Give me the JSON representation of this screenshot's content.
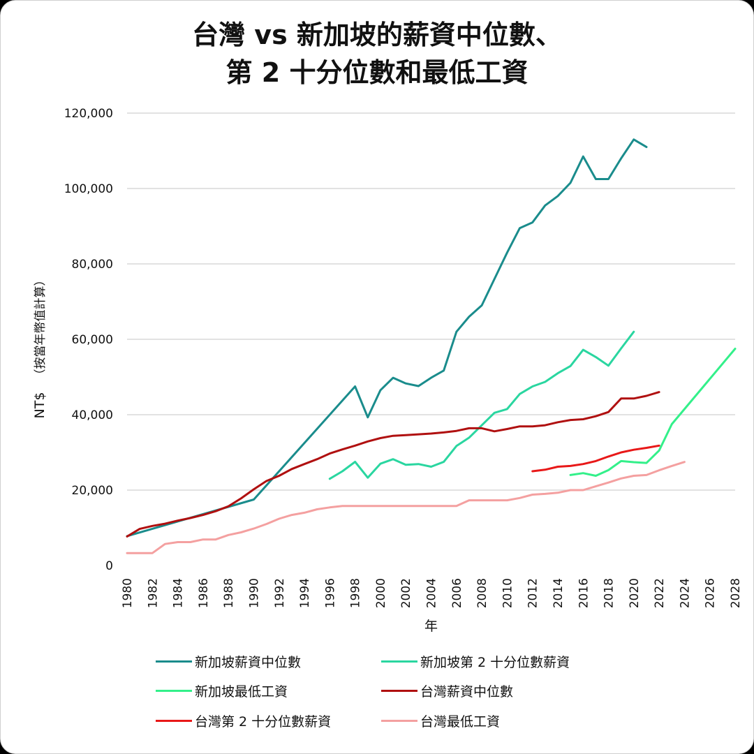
{
  "title_line1": "台灣 vs 新加坡的薪資中位數、",
  "title_line2": "第 2 十分位數和最低工資",
  "chart_data": {
    "type": "line",
    "title": "台灣 vs 新加坡的薪資中位數、第 2 十分位數和最低工資",
    "xlabel": "年",
    "ylabel": "NT$ （按當年幣值計算）",
    "ylabel_unit": "NT$",
    "ylabel_note": "（按當年幣值計算）",
    "ylim": [
      0,
      120000
    ],
    "xlim": [
      1980,
      2028
    ],
    "yticks": [
      0,
      20000,
      40000,
      60000,
      80000,
      100000,
      120000
    ],
    "ytick_labels": [
      "0",
      "20,000",
      "40,000",
      "60,000",
      "80,000",
      "100,000",
      "120,000"
    ],
    "xticks": [
      "1980",
      "1982",
      "1984",
      "1986",
      "1988",
      "1990",
      "1992",
      "1994",
      "1996",
      "1998",
      "2000",
      "2002",
      "2004",
      "2006",
      "2008",
      "2010",
      "2012",
      "2014",
      "2016",
      "2018",
      "2020",
      "2022",
      "2024",
      "2026",
      "2028"
    ],
    "grid": "horizontal",
    "legend_position": "bottom",
    "series": [
      {
        "name": "新加坡薪資中位數",
        "color": "#1a8c8c",
        "x": [
          1980,
          1990,
          1998,
          1999,
          2000,
          2001,
          2002,
          2003,
          2004,
          2005,
          2006,
          2007,
          2008,
          2009,
          2010,
          2011,
          2012,
          2013,
          2014,
          2015,
          2016,
          2017,
          2018,
          2019,
          2020,
          2021
        ],
        "y": [
          7800,
          17500,
          47500,
          39300,
          46500,
          49800,
          48300,
          47600,
          49800,
          51700,
          62000,
          66000,
          69000,
          76000,
          83000,
          89500,
          91000,
          95500,
          98000,
          101500,
          108500,
          102500,
          102500,
          108000,
          113000,
          111000
        ]
      },
      {
        "name": "新加坡第 2 十分位數薪資",
        "color": "#2ad6a0",
        "x": [
          1996,
          1997,
          1998,
          1999,
          2000,
          2001,
          2002,
          2003,
          2004,
          2005,
          2006,
          2007,
          2008,
          2009,
          2010,
          2011,
          2012,
          2013,
          2014,
          2015,
          2016,
          2017,
          2018,
          2019,
          2020
        ],
        "y": [
          23000,
          25000,
          27500,
          23300,
          27000,
          28200,
          26700,
          26900,
          26200,
          27500,
          31700,
          33900,
          37200,
          40500,
          41500,
          45500,
          47500,
          48700,
          51000,
          52900,
          57200,
          55300,
          53000,
          57600,
          62000
        ]
      },
      {
        "name": "新加坡最低工資",
        "color": "#33f08a",
        "x": [
          2015,
          2016,
          2017,
          2018,
          2019,
          2020,
          2021,
          2022,
          2023,
          2028
        ],
        "y": [
          24000,
          24500,
          23800,
          25300,
          27700,
          27400,
          27200,
          30500,
          37500,
          57500
        ]
      },
      {
        "name": "台灣薪資中位數",
        "color": "#b01010",
        "x": [
          1980,
          1981,
          1982,
          1983,
          1984,
          1985,
          1986,
          1987,
          1988,
          1989,
          1990,
          1991,
          1992,
          1993,
          1994,
          1995,
          1996,
          1997,
          1998,
          1999,
          2000,
          2001,
          2002,
          2003,
          2004,
          2005,
          2006,
          2007,
          2008,
          2009,
          2010,
          2011,
          2012,
          2013,
          2014,
          2015,
          2016,
          2017,
          2018,
          2019,
          2020,
          2021,
          2022
        ],
        "y": [
          7700,
          9700,
          10500,
          11100,
          11900,
          12600,
          13400,
          14400,
          15700,
          17800,
          20200,
          22400,
          23800,
          25600,
          26900,
          28200,
          29700,
          30800,
          31800,
          32900,
          33800,
          34400,
          34600,
          34800,
          35000,
          35300,
          35700,
          36400,
          36400,
          35600,
          36200,
          36900,
          36900,
          37200,
          38000,
          38600,
          38800,
          39600,
          40700,
          44300,
          44300,
          45000,
          46000
        ]
      },
      {
        "name": "台灣第 2 十分位數薪資",
        "color": "#e81818",
        "x": [
          2012,
          2013,
          2014,
          2015,
          2016,
          2017,
          2018,
          2019,
          2020,
          2021,
          2022
        ],
        "y": [
          25000,
          25400,
          26200,
          26400,
          26900,
          27700,
          28900,
          30000,
          30700,
          31200,
          31800
        ]
      },
      {
        "name": "台灣最低工資",
        "color": "#f4a0a0",
        "x": [
          1980,
          1981,
          1982,
          1983,
          1984,
          1985,
          1986,
          1987,
          1988,
          1989,
          1990,
          1991,
          1992,
          1993,
          1994,
          1995,
          1996,
          1997,
          1998,
          2006,
          2007,
          2008,
          2009,
          2010,
          2011,
          2012,
          2013,
          2014,
          2015,
          2016,
          2017,
          2018,
          2019,
          2020,
          2021,
          2022,
          2023,
          2024
        ],
        "y": [
          3300,
          3300,
          3300,
          5700,
          6200,
          6200,
          6900,
          6900,
          8100,
          8800,
          9800,
          11000,
          12400,
          13400,
          14000,
          14900,
          15400,
          15800,
          15800,
          15800,
          17300,
          17300,
          17300,
          17300,
          17900,
          18800,
          19000,
          19300,
          20000,
          20000,
          21000,
          22000,
          23100,
          23800,
          24000,
          25250,
          26400,
          27470
        ]
      }
    ]
  }
}
